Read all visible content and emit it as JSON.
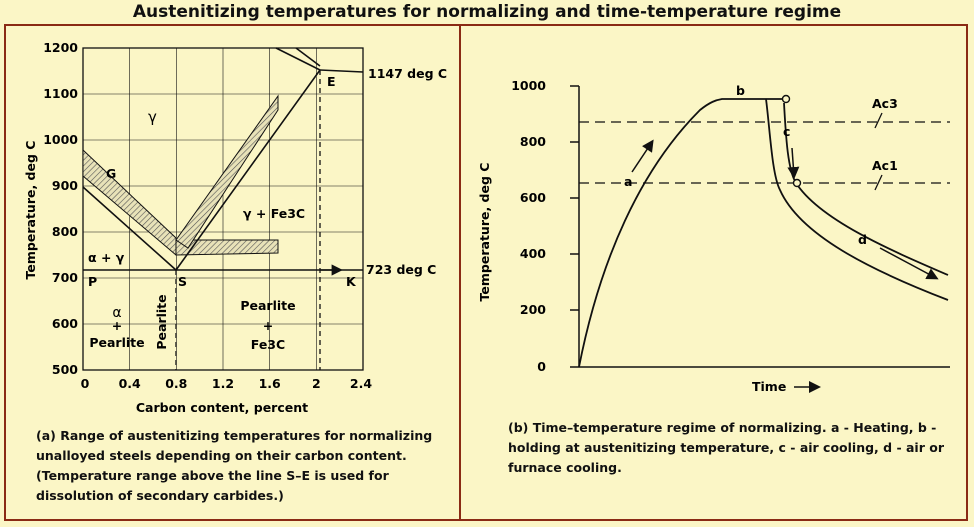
{
  "title": "Austenitizing temperatures for normalizing and time-temperature regime",
  "left": {
    "ylabel": "Temperature, deg C",
    "xlabel": "Carbon content, percent",
    "yticks": [
      "1200",
      "1100",
      "1000",
      "900",
      "800",
      "700",
      "600",
      "500"
    ],
    "xticks": [
      "0",
      "0.4",
      "0.8",
      "1.2",
      "1.6",
      "2",
      "2.4"
    ],
    "labels": {
      "gamma": "γ",
      "G": "G",
      "alpha_gamma": "α + γ",
      "gamma_fe3c": "γ + Fe3C",
      "E": "E",
      "P": "P",
      "S": "S",
      "K": "K",
      "temp_1147": "1147 deg C",
      "temp_723": "723 deg C",
      "alpha": "α",
      "plus1": "+",
      "pearlite1": "Pearlite",
      "pearlite_vert": "Pearlite",
      "pearlite2": "Pearlite",
      "plus2": "+",
      "fe3c": "Fe3C"
    },
    "caption": "(a)  Range of austenitizing temperatures for normalizing unalloyed steels depending on their carbon content. (Temperature range above the line S–E is used for dissolution of secondary carbides.)"
  },
  "right": {
    "ylabel": "Temperature, deg C",
    "xlabel": "Time",
    "yticks": [
      "1000",
      "800",
      "600",
      "400",
      "200",
      "0"
    ],
    "labels": {
      "a": "a",
      "b": "b",
      "c": "c",
      "d": "d",
      "ac3": "Ac3",
      "ac1": "Ac1"
    },
    "caption": "(b) Time–temperature regime of normalizing. a - Heating, b - holding at austenitizing temperature, c - air cooling, d - air or furnace cooling."
  },
  "colors": {
    "frame": "#8a2a14",
    "background": "#fbf6c6",
    "band": "#c8c2a0"
  }
}
